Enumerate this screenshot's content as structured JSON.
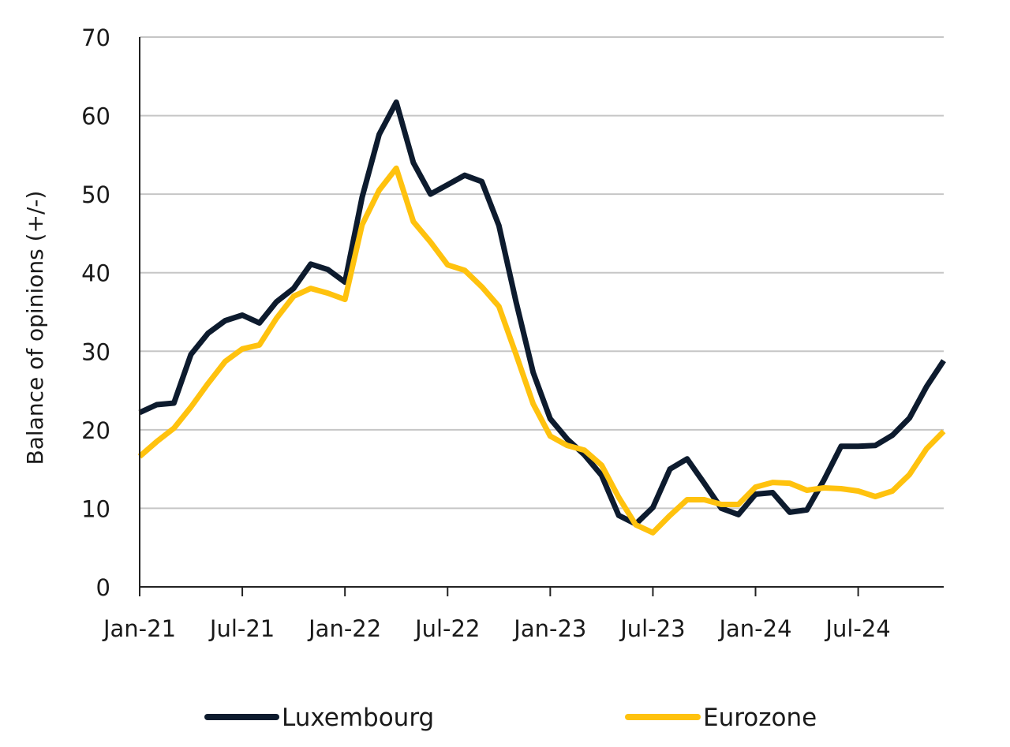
{
  "chart_data": {
    "type": "line",
    "title": "",
    "xlabel": "",
    "ylabel": "Balance of opinions (+/-)",
    "ylim": [
      0,
      70
    ],
    "yticks": [
      "0",
      "10",
      "20",
      "30",
      "40",
      "50",
      "60",
      "70"
    ],
    "xticks": [
      "Jan-21",
      "Jul-21",
      "Jan-22",
      "Jul-22",
      "Jan-23",
      "Jul-23",
      "Jan-24",
      "Jul-24"
    ],
    "grid": true,
    "legend_position": "bottom",
    "x": [
      "Jan-21",
      "Feb-21",
      "Mar-21",
      "Apr-21",
      "May-21",
      "Jun-21",
      "Jul-21",
      "Aug-21",
      "Sep-21",
      "Oct-21",
      "Nov-21",
      "Dec-21",
      "Jan-22",
      "Feb-22",
      "Mar-22",
      "Apr-22",
      "May-22",
      "Jun-22",
      "Jul-22",
      "Aug-22",
      "Sep-22",
      "Oct-22",
      "Nov-22",
      "Dec-22",
      "Jan-23",
      "Feb-23",
      "Mar-23",
      "Apr-23",
      "May-23",
      "Jun-23",
      "Jul-23",
      "Aug-23",
      "Sep-23",
      "Oct-23",
      "Nov-23",
      "Dec-23",
      "Jan-24",
      "Feb-24",
      "Mar-24",
      "Apr-24",
      "May-24",
      "Jun-24",
      "Jul-24",
      "Aug-24",
      "Sep-24",
      "Oct-24",
      "Nov-24",
      "Dec-24"
    ],
    "series": [
      {
        "name": "Luxembourg",
        "color": "#0d1b2e",
        "values": [
          22.2,
          23.2,
          23.4,
          29.6,
          32.3,
          33.9,
          34.6,
          33.6,
          36.3,
          38.0,
          41.1,
          40.4,
          38.8,
          49.6,
          57.6,
          61.7,
          54.0,
          50.0,
          51.2,
          52.4,
          51.6,
          46.0,
          36.3,
          27.3,
          21.4,
          18.8,
          16.8,
          14.2,
          9.1,
          8.0,
          10.1,
          15.0,
          16.3,
          13.2,
          10.0,
          9.2,
          11.8,
          12.0,
          9.5,
          9.8,
          13.6,
          17.9,
          17.9,
          18.0,
          19.3,
          21.5,
          25.5,
          28.8
        ]
      },
      {
        "name": "Eurozone",
        "color": "#ffc20e",
        "values": [
          16.6,
          18.5,
          20.2,
          22.9,
          25.9,
          28.7,
          30.3,
          30.8,
          34.2,
          37.0,
          38.0,
          37.4,
          36.6,
          46.1,
          50.5,
          53.3,
          46.5,
          43.9,
          41.0,
          40.3,
          38.2,
          35.7,
          29.6,
          23.3,
          19.2,
          18.0,
          17.4,
          15.5,
          11.4,
          7.9,
          6.9,
          9.1,
          11.1,
          11.1,
          10.5,
          10.5,
          12.7,
          13.3,
          13.2,
          12.3,
          12.6,
          12.5,
          12.2,
          11.5,
          12.2,
          14.3,
          17.6,
          19.8
        ]
      }
    ]
  }
}
